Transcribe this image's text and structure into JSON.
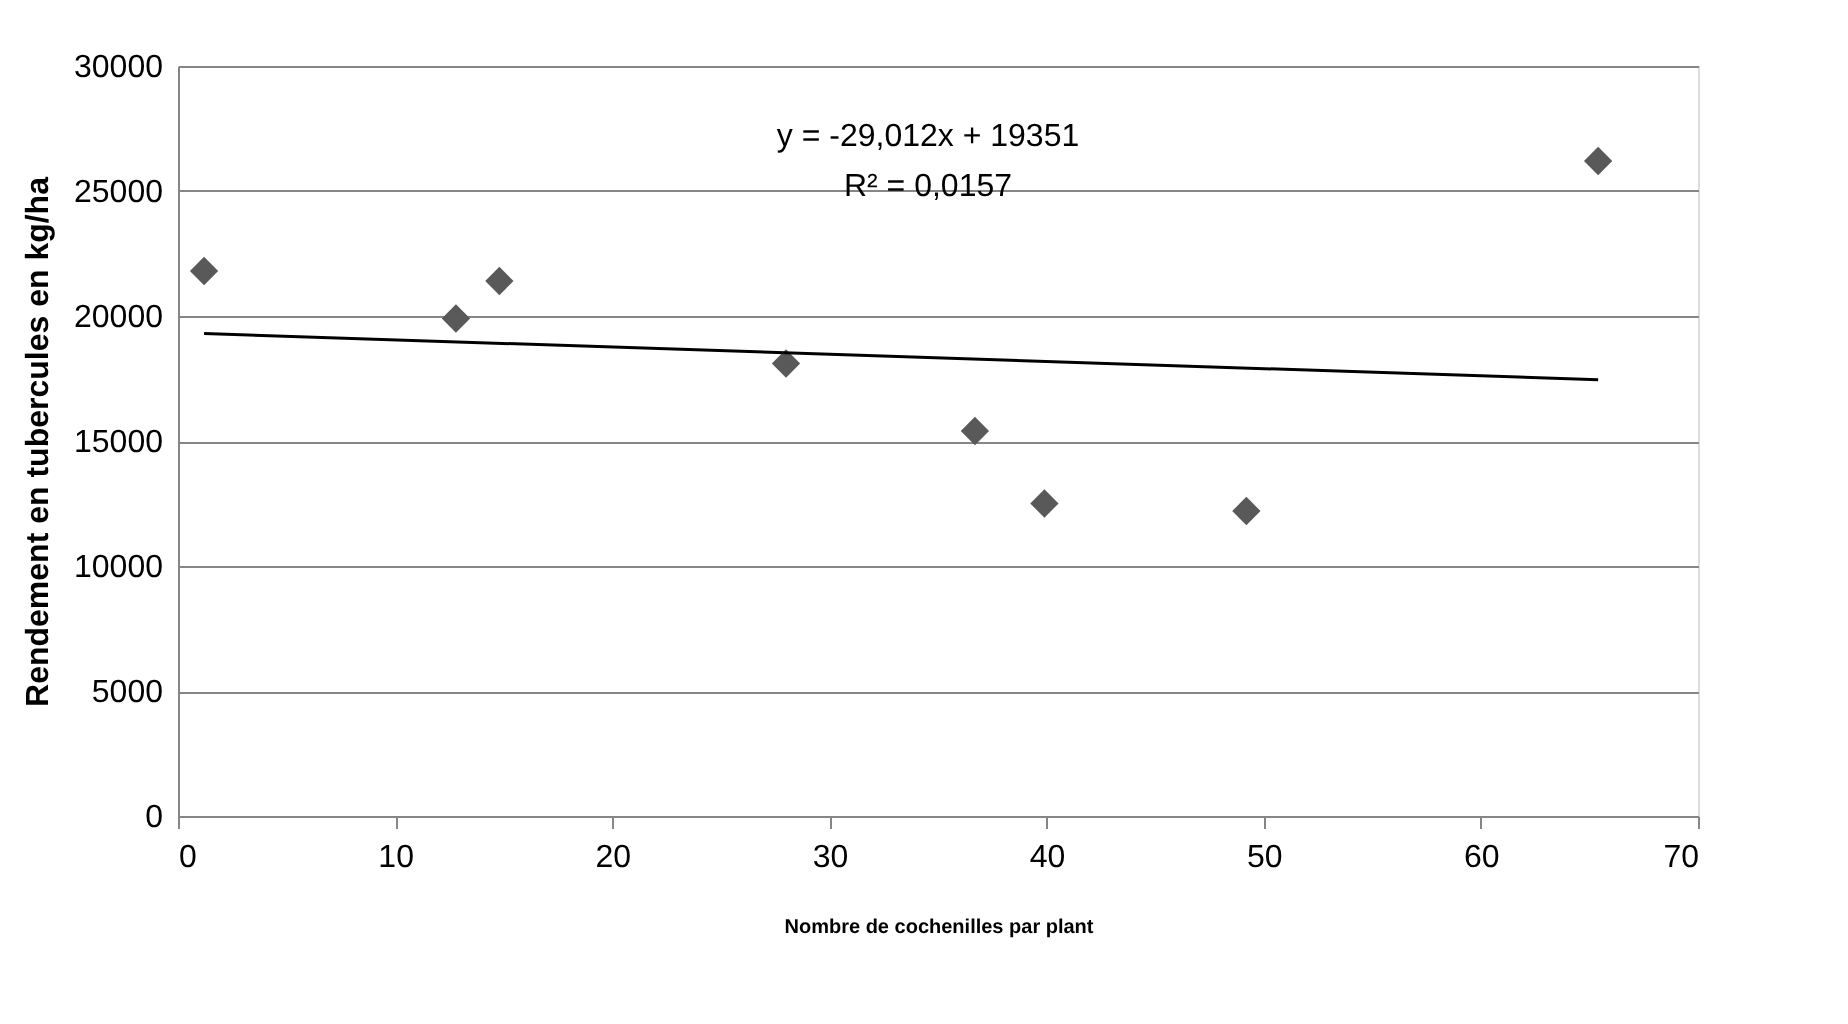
{
  "chart_data": {
    "type": "scatter",
    "xlabel": "Nombre de cochenilles par plant",
    "ylabel": "Rendement en tubercules en kg/ha",
    "series": [
      {
        "color": "#595959",
        "marker": "diamond",
        "x": [
          1.2,
          12.8,
          14.8,
          28.0,
          36.7,
          39.9,
          49.2,
          65.4
        ],
        "values": [
          21800,
          19900,
          21400,
          18100,
          15400,
          12500,
          12200,
          26200
        ]
      },
      {
        "type": "line",
        "color": "#000000",
        "marker": "none",
        "line_style": "solid",
        "x": [
          1.2,
          65.4
        ],
        "values": [
          19300,
          17450
        ]
      }
    ],
    "annotations": [
      "y = -29,012x + 19351",
      "R² = 0,0157"
    ],
    "xlim": [
      0,
      70
    ],
    "xticks": [
      0,
      10,
      20,
      30,
      40,
      50,
      60,
      70
    ],
    "ylim": [
      0,
      30000
    ],
    "yticks": [
      0,
      5000,
      10000,
      15000,
      20000,
      25000,
      30000
    ],
    "grid": "y"
  }
}
